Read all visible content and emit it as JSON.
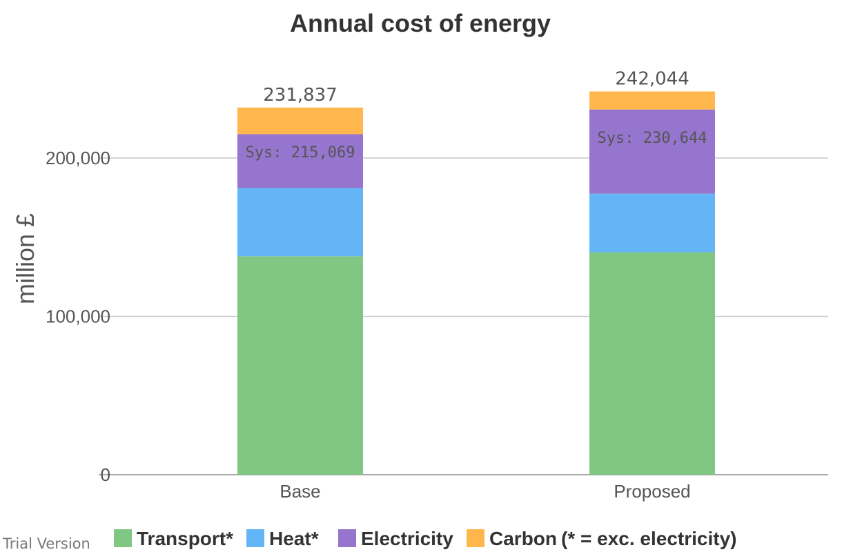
{
  "chart_data": {
    "type": "bar",
    "stacked": true,
    "title": "Annual cost of energy",
    "ylabel": "million £",
    "xlabel": "",
    "ylim": [
      0,
      240000
    ],
    "yticks": [
      0,
      100000,
      200000
    ],
    "ytick_labels": [
      "0",
      "100,000",
      "200,000"
    ],
    "grid": true,
    "categories": [
      "Base",
      "Proposed"
    ],
    "series": [
      {
        "name": "Transport*",
        "color": "#81c784",
        "values": [
          138000,
          140500
        ]
      },
      {
        "name": "Heat*",
        "color": "#64b5f6",
        "values": [
          43000,
          37000
        ]
      },
      {
        "name": "Electricity",
        "color": "#9575cd",
        "values": [
          34069,
          53144
        ]
      },
      {
        "name": "Carbon",
        "color": "#ffb74d",
        "values": [
          16768,
          11400
        ]
      }
    ],
    "totals": [
      "231,837",
      "242,044"
    ],
    "annotations": [
      "Sys: 215,069",
      "Sys: 230,644"
    ],
    "legend_note": "(* = exc. electricity)",
    "legend_position": "bottom"
  },
  "watermark": "Trial Version"
}
